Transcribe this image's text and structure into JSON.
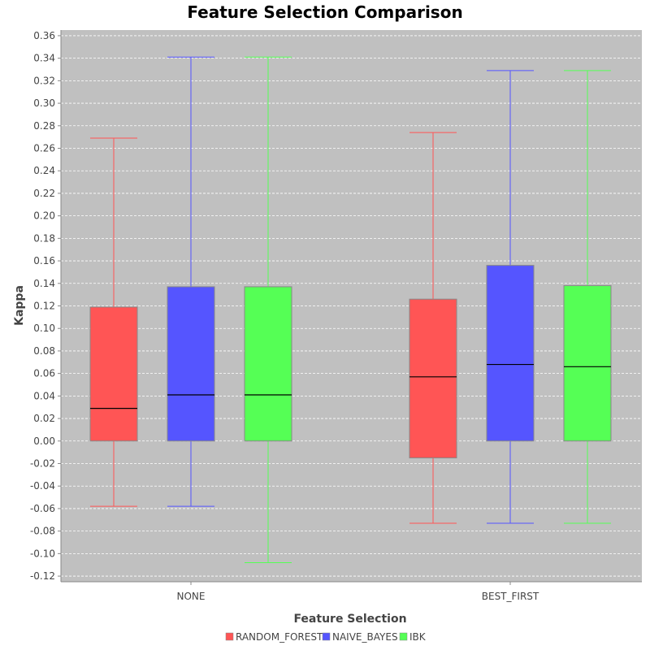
{
  "chart_data": {
    "type": "boxplot",
    "title": "Feature Selection Comparison",
    "xlabel": "Feature Selection",
    "ylabel": "Kappa",
    "ylim": [
      -0.125,
      0.365
    ],
    "yticks": [
      -0.12,
      -0.1,
      -0.08,
      -0.06,
      -0.04,
      -0.02,
      0.0,
      0.02,
      0.04,
      0.06,
      0.08,
      0.1,
      0.12,
      0.14,
      0.16,
      0.18,
      0.2,
      0.22,
      0.24,
      0.26,
      0.28,
      0.3,
      0.32,
      0.34,
      0.36
    ],
    "ytick_labels": [
      "-0.12",
      "-0.10",
      "-0.08",
      "-0.06",
      "-0.04",
      "-0.02",
      "0.00",
      "0.02",
      "0.04",
      "0.06",
      "0.08",
      "0.10",
      "0.12",
      "0.14",
      "0.16",
      "0.18",
      "0.20",
      "0.22",
      "0.24",
      "0.26",
      "0.28",
      "0.30",
      "0.32",
      "0.34",
      "0.36"
    ],
    "categories": [
      "NONE",
      "BEST_FIRST"
    ],
    "grid": true,
    "legend_position": "bottom",
    "background_color": "#c0c0c0",
    "series": [
      {
        "name": "RANDOM_FOREST",
        "color": "#ff5555",
        "boxes": [
          {
            "min": -0.058,
            "q1": 0.0,
            "median": 0.029,
            "q3": 0.119,
            "max": 0.269
          },
          {
            "min": -0.073,
            "q1": -0.015,
            "median": 0.057,
            "q3": 0.126,
            "max": 0.274
          }
        ]
      },
      {
        "name": "NAIVE_BAYES",
        "color": "#5555ff",
        "boxes": [
          {
            "min": -0.058,
            "q1": 0.0,
            "median": 0.041,
            "q3": 0.137,
            "max": 0.341
          },
          {
            "min": -0.073,
            "q1": 0.0,
            "median": 0.068,
            "q3": 0.156,
            "max": 0.329
          }
        ]
      },
      {
        "name": "IBK",
        "color": "#55ff55",
        "boxes": [
          {
            "min": -0.108,
            "q1": 0.0,
            "median": 0.041,
            "q3": 0.137,
            "max": 0.341
          },
          {
            "min": -0.073,
            "q1": 0.0,
            "median": 0.066,
            "q3": 0.138,
            "max": 0.329
          }
        ]
      }
    ]
  }
}
